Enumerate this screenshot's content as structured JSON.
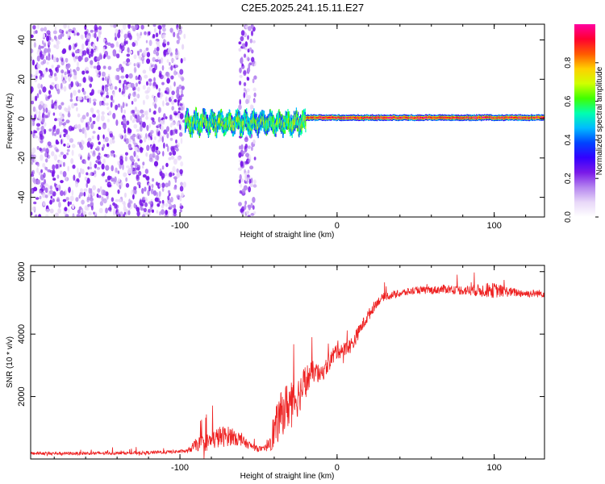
{
  "figure_title": "C2E5.2025.241.15.11.E27",
  "colors": {
    "snr_line": "#ee2222",
    "spectrogram_palette": [
      "#ffffff",
      "#e8d8f8",
      "#b585ef",
      "#7a1ae8",
      "#3300ff",
      "#0044ff",
      "#00bbff",
      "#00ffb0",
      "#40ff00",
      "#d0ff00",
      "#ffd000",
      "#ff5a00",
      "#ff0030",
      "#ff00a0"
    ]
  },
  "chart_data": [
    {
      "type": "heatmap",
      "title": "",
      "xlabel": "Height of straight line (km)",
      "ylabel": "Frequency (Hz)",
      "xlim": [
        -195,
        132
      ],
      "ylim": [
        -50,
        48
      ],
      "x_ticks": [
        -100,
        0,
        100
      ],
      "x_tick_labels": [
        "-100",
        "0",
        "100"
      ],
      "y_ticks": [
        -40,
        -20,
        0,
        20,
        40
      ],
      "y_tick_labels": [
        "-40",
        "-20",
        "0",
        "20",
        "40"
      ],
      "colorbar": {
        "label": "Normalized spectral amplitude",
        "range": [
          0,
          1
        ],
        "ticks": [
          0.0,
          0.2,
          0.4,
          0.6,
          0.8
        ],
        "tick_labels": [
          "0.0",
          "0.2",
          "0.4",
          "0.6",
          "0.8"
        ]
      },
      "description_regions": [
        {
          "x_range": [
            -195,
            -97
          ],
          "freq_range": [
            -50,
            48
          ],
          "level": 0.12,
          "pattern": "broadband noise"
        },
        {
          "x_range": [
            -62,
            -52
          ],
          "freq_range": [
            -50,
            48
          ],
          "level": 0.1,
          "pattern": "broadband burst"
        },
        {
          "x_range": [
            -97,
            -20
          ],
          "freq_center": -2,
          "freq_width": 6,
          "level": 0.45,
          "pattern": "wandering carrier"
        },
        {
          "x_range": [
            -20,
            132
          ],
          "freq_center": 0.5,
          "freq_width": 2,
          "level": 0.85,
          "pattern": "steady carrier"
        }
      ]
    },
    {
      "type": "line",
      "title": "",
      "xlabel": "Height of straight line (km)",
      "ylabel": "SNR (10 * v/v)",
      "xlim": [
        -195,
        132
      ],
      "ylim": [
        0,
        6200
      ],
      "x_ticks": [
        -100,
        0,
        100
      ],
      "x_tick_labels": [
        "-100",
        "0",
        "100"
      ],
      "y_ticks": [
        2000,
        4000,
        6000
      ],
      "y_tick_labels": [
        "2000",
        "4000",
        "6000"
      ],
      "series": [
        {
          "name": "SNR",
          "x": [
            -195,
            -160,
            -120,
            -95,
            -90,
            -82,
            -75,
            -66,
            -58,
            -52,
            -46,
            -40,
            -35,
            -30,
            -25,
            -20,
            -15,
            -10,
            -5,
            0,
            5,
            10,
            15,
            20,
            25,
            30,
            40,
            50,
            60,
            70,
            80,
            90,
            100,
            110,
            120,
            132
          ],
          "values": [
            180,
            180,
            200,
            250,
            450,
            550,
            700,
            750,
            500,
            350,
            300,
            900,
            1500,
            1800,
            2000,
            2500,
            2800,
            2700,
            3100,
            3500,
            3500,
            3700,
            4200,
            4600,
            5000,
            5200,
            5300,
            5400,
            5400,
            5450,
            5400,
            5400,
            5400,
            5350,
            5300,
            5300
          ],
          "noise": [
            100,
            100,
            100,
            120,
            400,
            600,
            700,
            600,
            300,
            200,
            150,
            1200,
            1500,
            1600,
            1300,
            1100,
            700,
            500,
            600,
            600,
            500,
            500,
            400,
            400,
            300,
            250,
            250,
            250,
            250,
            300,
            300,
            400,
            500,
            300,
            250,
            250
          ]
        }
      ]
    }
  ]
}
